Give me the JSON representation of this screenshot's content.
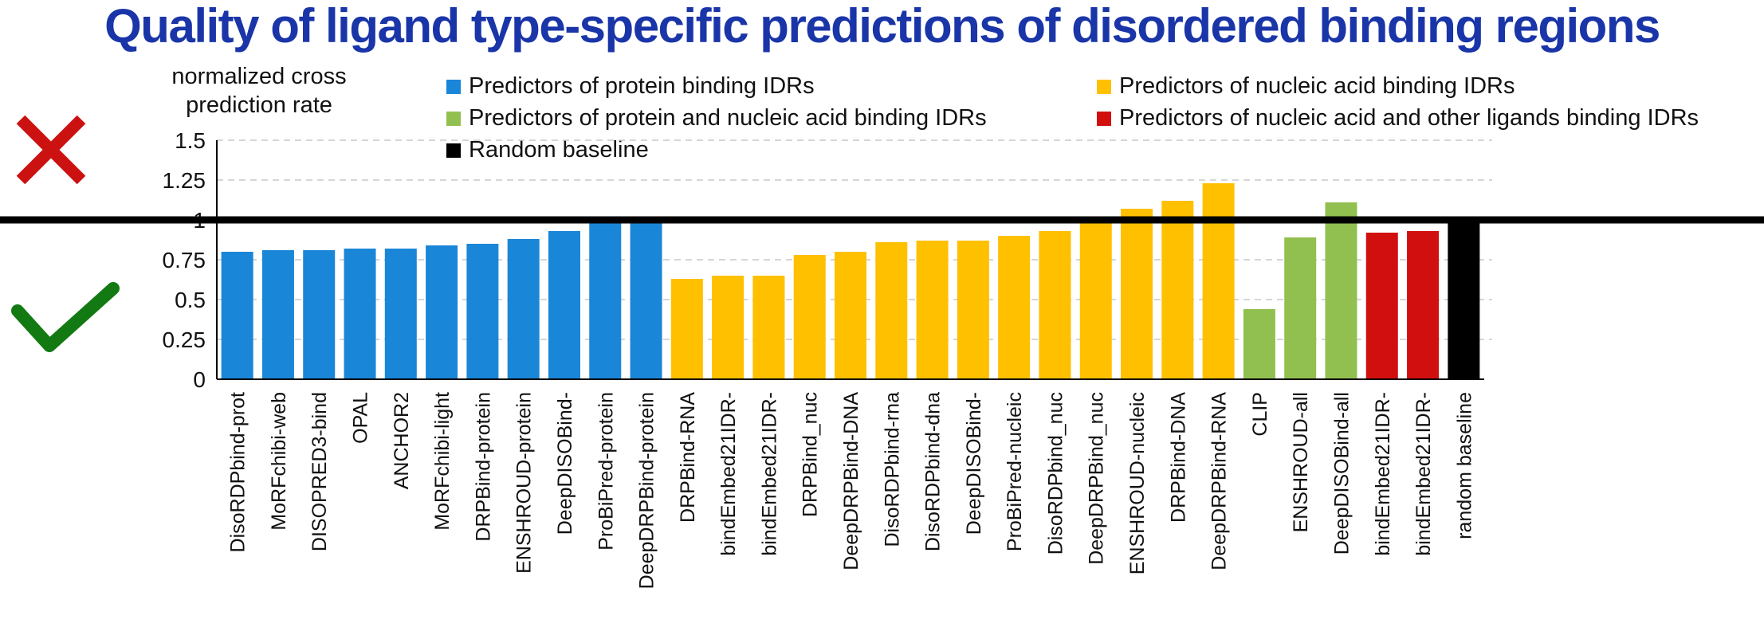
{
  "chart_data": {
    "type": "bar",
    "title": "Quality of ligand type-specific predictions of disordered binding regions",
    "ylabel": "normalized cross prediction rate",
    "xlabel": "",
    "ylim": [
      0,
      1.5
    ],
    "yticks": [
      "0",
      "0.25",
      "0.5",
      "0.75",
      "1",
      "1.25",
      "1.5"
    ],
    "grid": true,
    "legend_position": "top",
    "reference_line": 1,
    "categories": [
      "DisoRDPbind-prot",
      "MoRFchibi-web",
      "DISOPRED3-bind",
      "OPAL",
      "ANCHOR2",
      "MoRFchibi-light",
      "DRPBind-protein",
      "ENSHROUD-protein",
      "DeepDISOBind-",
      "ProBiPred-protein",
      "DeepDRPBind-protein",
      "DRPBind-RNA",
      "bindEmbed21IDR-",
      "bindEmbed21IDR-",
      "DRPBind_nuc",
      "DeepDRPBind-DNA",
      "DisoRDPbind-rna",
      "DisoRDPbind-dna",
      "DeepDISOBind-",
      "ProBiPred-nucleic",
      "DisoRDPbind_nuc",
      "DeepDRPBind_nuc",
      "ENSHROUD-nucleic",
      "DRPBind-DNA",
      "DeepDRPBind-RNA",
      "CLIP",
      "ENSHROUD-all",
      "DeepDISOBind-all",
      "bindEmbed21IDR-",
      "bindEmbed21IDR-",
      "random baseline"
    ],
    "values": [
      0.8,
      0.81,
      0.81,
      0.82,
      0.82,
      0.84,
      0.85,
      0.88,
      0.93,
      0.98,
      0.98,
      0.63,
      0.65,
      0.65,
      0.78,
      0.8,
      0.86,
      0.87,
      0.87,
      0.9,
      0.93,
      0.98,
      1.07,
      1.12,
      1.23,
      0.44,
      0.89,
      1.11,
      0.92,
      0.93,
      1.0
    ],
    "groups": [
      0,
      0,
      0,
      0,
      0,
      0,
      0,
      0,
      0,
      0,
      0,
      1,
      1,
      1,
      1,
      1,
      1,
      1,
      1,
      1,
      1,
      1,
      1,
      1,
      1,
      2,
      2,
      2,
      3,
      3,
      4
    ],
    "series": [
      {
        "name": "Predictors of protein binding IDRs",
        "color": "#1a86d8"
      },
      {
        "name": "Predictors of nucleic acid binding IDRs",
        "color": "#ffc000"
      },
      {
        "name": "Predictors of protein and nucleic acid binding IDRs",
        "color": "#92c050"
      },
      {
        "name": "Predictors of nucleic acid and other ligands binding IDRs",
        "color": "#d10f0f"
      },
      {
        "name": "Random baseline",
        "color": "#000000"
      }
    ]
  },
  "markers": {
    "cross_icon_color": "#cc1111",
    "check_icon_color": "#137a13"
  }
}
